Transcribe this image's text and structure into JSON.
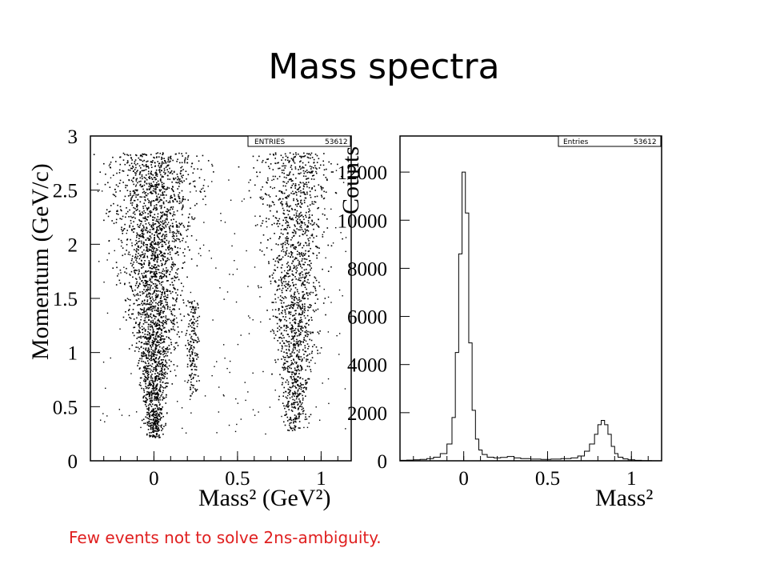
{
  "slide": {
    "title": "Mass spectra",
    "caption": "Few events  not to solve 2ns-ambiguity."
  },
  "chart_data": [
    {
      "type": "scatter",
      "xlabel": "Mass² (GeV²)",
      "ylabel": "Momentum (GeV/c)",
      "xlim": [
        -0.38,
        1.18
      ],
      "ylim": [
        0,
        3
      ],
      "xticks": [
        "0",
        "0.5",
        "1"
      ],
      "yticks": [
        "0",
        "0.5",
        "1",
        "1.5",
        "2",
        "2.5",
        "3"
      ],
      "stats": {
        "label": "ENTRIES",
        "value": "53612"
      },
      "series": [
        {
          "points": [
            [
              0.01,
              0.3
            ],
            [
              0.0,
              0.45
            ],
            [
              -0.02,
              0.7
            ],
            [
              0.03,
              0.9
            ],
            [
              0.0,
              1.1
            ],
            [
              -0.03,
              1.3
            ],
            [
              0.04,
              1.5
            ],
            [
              -0.05,
              1.7
            ],
            [
              0.05,
              1.9
            ],
            [
              -0.07,
              2.1
            ],
            [
              0.08,
              2.3
            ],
            [
              -0.1,
              2.5
            ],
            [
              0.12,
              2.6
            ],
            [
              0.22,
              0.6
            ],
            [
              0.23,
              0.9
            ],
            [
              0.24,
              1.2
            ],
            [
              0.25,
              1.4
            ],
            [
              0.22,
              1.1
            ],
            [
              0.82,
              0.3
            ],
            [
              0.8,
              0.5
            ],
            [
              0.86,
              0.7
            ],
            [
              0.78,
              0.9
            ],
            [
              0.88,
              1.1
            ],
            [
              0.76,
              1.3
            ],
            [
              0.9,
              1.5
            ],
            [
              0.78,
              1.7
            ],
            [
              0.9,
              1.9
            ],
            [
              0.8,
              2.1
            ],
            [
              0.86,
              2.4
            ],
            [
              0.82,
              2.6
            ]
          ]
        }
      ]
    },
    {
      "type": "line",
      "xlabel": "Mass²",
      "ylabel": "Counts",
      "xlim": [
        -0.38,
        1.18
      ],
      "ylim": [
        0,
        13500
      ],
      "xticks": [
        "0",
        "0.5",
        "1"
      ],
      "yticks": [
        "0",
        "2000",
        "4000",
        "6000",
        "8000",
        "10000",
        "12000"
      ],
      "stats": {
        "label": "Entries",
        "value": "53612"
      },
      "x": [
        -0.38,
        -0.34,
        -0.3,
        -0.26,
        -0.22,
        -0.18,
        -0.14,
        -0.1,
        -0.07,
        -0.05,
        -0.03,
        -0.01,
        0.01,
        0.03,
        0.05,
        0.07,
        0.09,
        0.11,
        0.14,
        0.18,
        0.22,
        0.26,
        0.3,
        0.34,
        0.4,
        0.46,
        0.52,
        0.58,
        0.64,
        0.68,
        0.72,
        0.75,
        0.78,
        0.8,
        0.82,
        0.84,
        0.86,
        0.88,
        0.9,
        0.92,
        0.95,
        0.98,
        1.02,
        1.06,
        1.12,
        1.18
      ],
      "values": [
        20,
        30,
        40,
        60,
        90,
        150,
        300,
        700,
        1800,
        4500,
        8600,
        12000,
        10300,
        4900,
        2100,
        900,
        450,
        260,
        150,
        120,
        140,
        180,
        120,
        90,
        70,
        60,
        70,
        90,
        120,
        200,
        400,
        700,
        1100,
        1500,
        1680,
        1500,
        1100,
        600,
        300,
        150,
        80,
        40,
        20,
        10,
        5,
        0
      ]
    }
  ]
}
